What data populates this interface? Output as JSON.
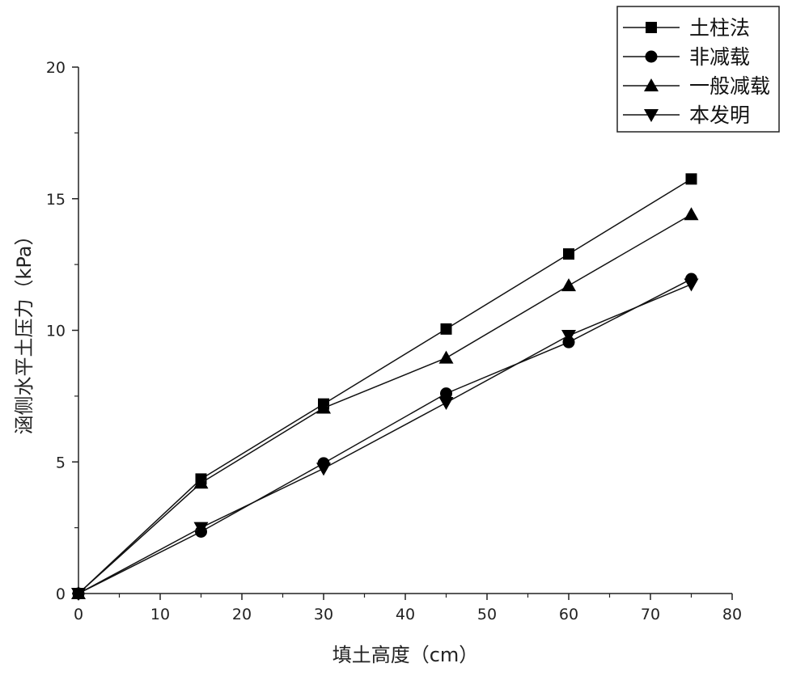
{
  "chart_data": {
    "type": "line",
    "title": "",
    "xlabel": "填土高度（cm）",
    "ylabel": "涵侧水平土压力（kPa）",
    "xlim": [
      0,
      80
    ],
    "ylim": [
      0,
      20
    ],
    "x_ticks": [
      "0",
      "10",
      "20",
      "30",
      "40",
      "50",
      "60",
      "70",
      "80"
    ],
    "y_ticks": [
      "0",
      "5",
      "10",
      "15",
      "20"
    ],
    "grid": false,
    "legend_position": "top-right",
    "x": [
      0,
      15,
      30,
      45,
      60,
      75
    ],
    "series": [
      {
        "name": "土柱法",
        "marker": "square",
        "values": [
          0,
          4.35,
          7.2,
          10.05,
          12.9,
          15.75
        ]
      },
      {
        "name": "非减载",
        "marker": "circle",
        "values": [
          0,
          2.35,
          4.95,
          7.6,
          9.55,
          11.95
        ]
      },
      {
        "name": "一般减载",
        "marker": "triangle-up",
        "values": [
          0,
          4.2,
          7.05,
          8.95,
          11.7,
          14.4
        ]
      },
      {
        "name": "本发明",
        "marker": "triangle-down",
        "values": [
          0,
          2.5,
          4.75,
          7.25,
          9.8,
          11.75
        ]
      }
    ]
  }
}
